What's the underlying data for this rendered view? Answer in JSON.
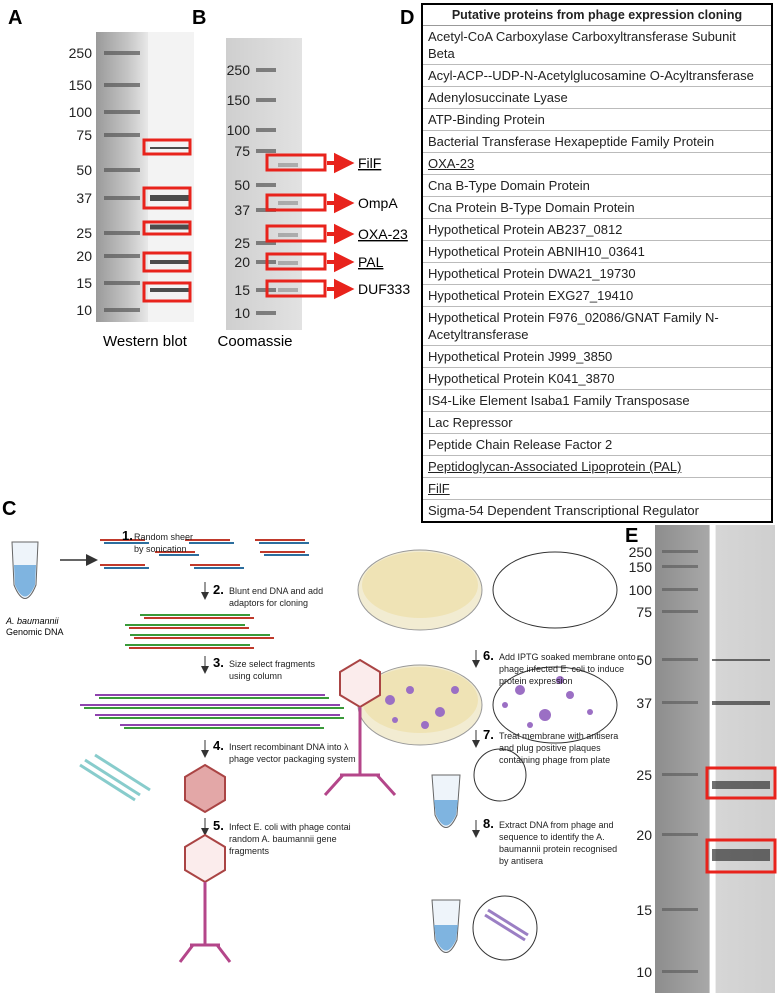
{
  "panel_labels": [
    "A",
    "B",
    "C",
    "D",
    "E"
  ],
  "panel_a": {
    "ladder": [
      250,
      150,
      100,
      75,
      50,
      37,
      25,
      20,
      15,
      10
    ],
    "caption": "Western blot"
  },
  "panel_b": {
    "ladder": [
      250,
      150,
      100,
      75,
      50,
      37,
      25,
      20,
      15,
      10
    ],
    "annotations": [
      {
        "text": "FilF",
        "underlined": true
      },
      {
        "text": "OmpA",
        "underlined": false
      },
      {
        "text": "OXA-23",
        "underlined": true
      },
      {
        "text": "PAL",
        "underlined": true
      },
      {
        "text": "DUF333",
        "underlined": false
      }
    ],
    "caption": "Coomassie"
  },
  "panel_c": {
    "source_label": [
      "A. baumannii",
      "Genomic DNA"
    ],
    "steps": [
      {
        "number": "1.",
        "lines": [
          "Random sheer",
          "by sonication"
        ]
      },
      {
        "number": "2.",
        "lines": [
          "Blunt end DNA and add",
          "adaptors for cloning"
        ]
      },
      {
        "number": "3.",
        "lines": [
          "Size select fragments",
          "using column"
        ]
      },
      {
        "number": "4.",
        "lines": [
          "Insert recombinant DNA into λ",
          "phage vector packaging system"
        ]
      },
      {
        "number": "5.",
        "lines": [
          "Infect E. coli with phage contai",
          "random A. baumannii gene",
          "fragments"
        ]
      },
      {
        "number": "6.",
        "lines": [
          "Add IPTG soaked membrane onto",
          "phage infected E. coli to induce",
          "protein expression"
        ]
      },
      {
        "number": "7.",
        "lines": [
          "Treat membrane with antisera",
          "and plug positive plaques",
          "containing phage from plate"
        ]
      },
      {
        "number": "8.",
        "lines": [
          "Extract DNA from phage and",
          "sequence to identify the A.",
          "baumannii protein recognised",
          "by antisera"
        ]
      }
    ]
  },
  "panel_d": {
    "header": "Putative proteins from phage expression cloning",
    "rows": [
      {
        "text": "Acetyl-CoA Carboxylase Carboxyltransferase Subunit Beta",
        "underlined": false
      },
      {
        "text": "Acyl-ACP--UDP-N-Acetylglucosamine O-Acyltransferase",
        "underlined": false
      },
      {
        "text": "Adenylosuccinate Lyase",
        "underlined": false
      },
      {
        "text": "ATP-Binding Protein",
        "underlined": false
      },
      {
        "text": "Bacterial Transferase Hexapeptide Family Protein",
        "underlined": false
      },
      {
        "text": "OXA-23",
        "underlined": true
      },
      {
        "text": "Cna B-Type Domain Protein",
        "underlined": false
      },
      {
        "text": "Cna Protein B-Type Domain Protein",
        "underlined": false
      },
      {
        "text": "Hypothetical Protein AB237_0812",
        "underlined": false
      },
      {
        "text": "Hypothetical Protein ABNIH10_03641",
        "underlined": false
      },
      {
        "text": "Hypothetical Protein DWA21_19730",
        "underlined": false
      },
      {
        "text": "Hypothetical Protein EXG27_19410",
        "underlined": false
      },
      {
        "text": "Hypothetical Protein F976_02086/GNAT Family N-Acetyltransferase",
        "underlined": false
      },
      {
        "text": "Hypothetical Protein J999_3850",
        "underlined": false
      },
      {
        "text": "Hypothetical Protein K041_3870",
        "underlined": false
      },
      {
        "text": "IS4-Like Element Isaba1 Family Transposase",
        "underlined": false
      },
      {
        "text": "Lac Repressor",
        "underlined": false
      },
      {
        "text": "Peptide Chain Release Factor 2",
        "underlined": false
      },
      {
        "text": "Peptidoglycan-Associated Lipoprotein (PAL)",
        "underlined": true
      },
      {
        "text": "FilF",
        "underlined": true
      },
      {
        "text": "Sigma-54 Dependent Transcriptional Regulator",
        "underlined": false
      }
    ]
  },
  "panel_e": {
    "ladder": [
      250,
      150,
      100,
      75,
      50,
      37,
      25,
      20,
      15,
      10
    ]
  }
}
